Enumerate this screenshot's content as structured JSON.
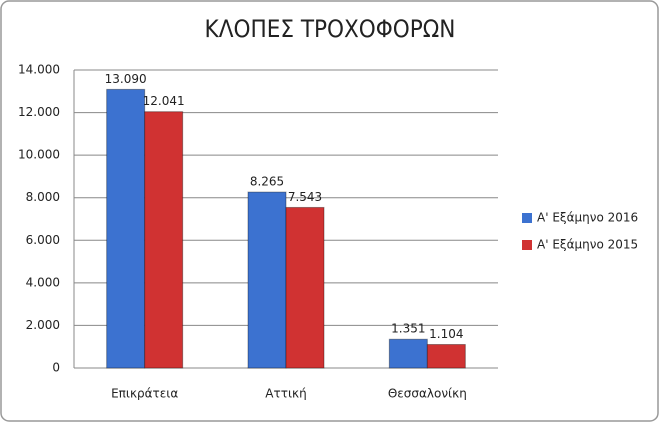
{
  "chart_data": {
    "type": "bar",
    "title": "ΚΛΟΠΕΣ ΤΡΟΧΟΦΟΡΩΝ",
    "categories": [
      "Επικράτεια",
      "Αττική",
      "Θεσσαλονίκη"
    ],
    "series": [
      {
        "name": "Α' Εξάμηνο 2016",
        "color": "#3c72d0",
        "values": [
          13090,
          8265,
          1351
        ],
        "value_labels": [
          "13.090",
          "8.265",
          "1.351"
        ]
      },
      {
        "name": "Α' Εξάμηνο 2015",
        "color": "#d03232",
        "values": [
          12041,
          7543,
          1104
        ],
        "value_labels": [
          "12.041",
          "7.543",
          "1.104"
        ]
      }
    ],
    "ylim": [
      0,
      14000
    ],
    "yticks": [
      0,
      {
        "value": 2000,
        "label": "2.000"
      },
      {
        "value": 4000,
        "label": "4.000"
      },
      {
        "value": 6000,
        "label": "6.000"
      },
      {
        "value": 8000,
        "label": "8.000"
      },
      {
        "value": 10000,
        "label": "10.000"
      },
      {
        "value": 12000,
        "label": "12.000"
      },
      {
        "value": 14000,
        "label": "14.000"
      }
    ],
    "grid": true,
    "legend": "right"
  }
}
